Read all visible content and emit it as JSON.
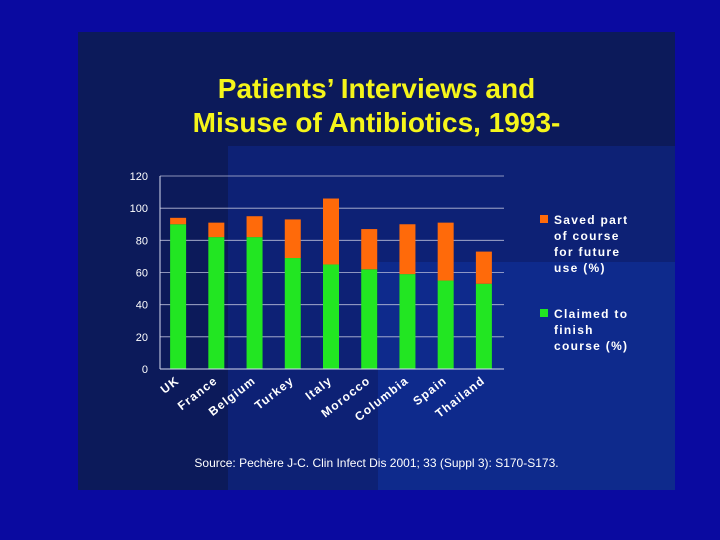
{
  "slide": {
    "title_line1": "Patients’ Interviews and",
    "title_line2": "Misuse of Antibiotics, 1993-",
    "source": "Source: Pechère J-C.  Clin Infect Dis 2001; 33 (Suppl 3): S170-S173."
  },
  "colors": {
    "background": "#0a0aa0",
    "title": "#f5f51a",
    "saved_series": "#ff6a0a",
    "finish_series": "#22e622"
  },
  "chart_data": {
    "type": "bar",
    "stacked": true,
    "categories": [
      "UK",
      "France",
      "Belgium",
      "Turkey",
      "Italy",
      "Morocco",
      "Columbia",
      "Spain",
      "Thailand"
    ],
    "series": [
      {
        "name": "Claimed to finish course (%)",
        "color": "#22e622",
        "values": [
          90,
          82,
          82,
          69,
          65,
          62,
          59,
          55,
          53
        ]
      },
      {
        "name": "Saved part of course for future use (%)",
        "color": "#ff6a0a",
        "values": [
          4,
          9,
          13,
          24,
          41,
          25,
          31,
          36,
          20
        ]
      }
    ],
    "ylim": [
      0,
      120
    ],
    "yticks": [
      "0",
      "20",
      "40",
      "60",
      "80",
      "100",
      "120"
    ],
    "grid": true,
    "legend": [
      {
        "label": "Saved part\nof course\nfor future\nuse (%)",
        "color": "#ff6a0a"
      },
      {
        "label": "Claimed to\nfinish\ncourse (%)",
        "color": "#22e622"
      }
    ],
    "legend_position": "right",
    "title": "",
    "xlabel": "",
    "ylabel": ""
  }
}
